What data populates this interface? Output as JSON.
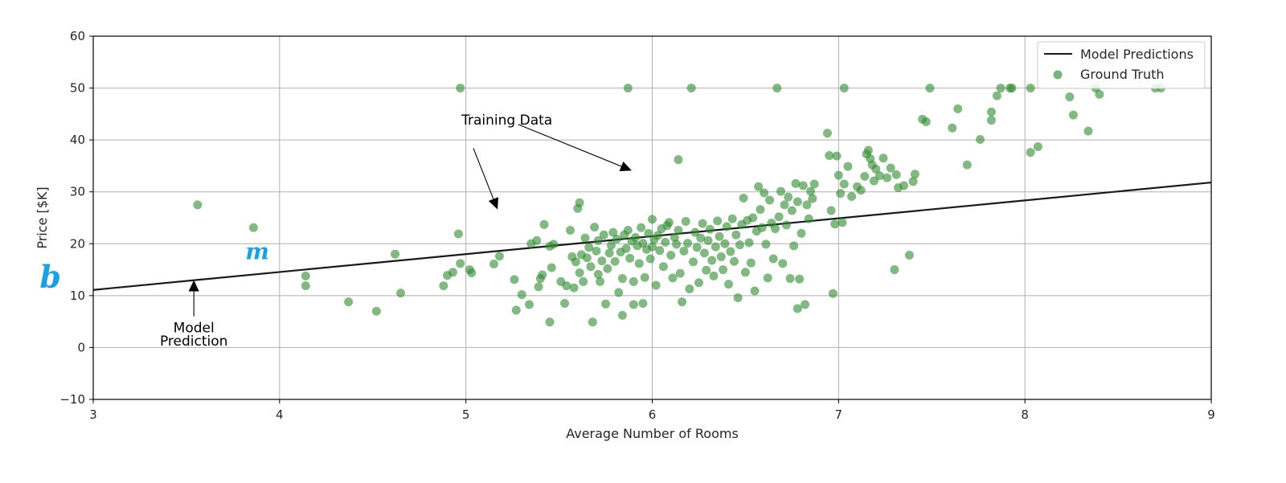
{
  "chart_data": {
    "type": "scatter",
    "xlabel": "Average Number of Rooms",
    "ylabel": "Price [$K]",
    "xlim": [
      3,
      9
    ],
    "ylim": [
      -10,
      60
    ],
    "xticks": [
      3,
      4,
      5,
      6,
      7,
      8,
      9
    ],
    "yticks": [
      -10,
      0,
      10,
      20,
      30,
      40,
      50,
      60
    ],
    "ytick_labels": [
      "−10",
      "0",
      "10",
      "20",
      "30",
      "40",
      "50",
      "60"
    ],
    "grid": true,
    "legend_position": "top-right",
    "series": [
      {
        "name": "Model Predictions",
        "kind": "line",
        "color": "#1a1a1a",
        "x": [
          3,
          9
        ],
        "y": [
          11.1,
          31.8
        ]
      },
      {
        "name": "Ground Truth",
        "kind": "scatter",
        "color": "#2e8b2e",
        "points": [
          [
            3.56,
            27.5
          ],
          [
            3.86,
            23.1
          ],
          [
            4.14,
            13.8
          ],
          [
            4.14,
            11.9
          ],
          [
            4.37,
            8.8
          ],
          [
            4.52,
            7.0
          ],
          [
            4.62,
            18.0
          ],
          [
            4.65,
            10.5
          ],
          [
            4.88,
            11.9
          ],
          [
            4.9,
            13.9
          ],
          [
            4.93,
            14.5
          ],
          [
            4.96,
            21.9
          ],
          [
            4.97,
            16.2
          ],
          [
            4.97,
            50.0
          ],
          [
            5.02,
            15.0
          ],
          [
            5.03,
            14.4
          ],
          [
            5.15,
            16.1
          ],
          [
            5.18,
            17.6
          ],
          [
            5.26,
            13.1
          ],
          [
            5.27,
            7.2
          ],
          [
            5.3,
            10.2
          ],
          [
            5.34,
            8.3
          ],
          [
            5.35,
            20.0
          ],
          [
            5.38,
            20.6
          ],
          [
            5.39,
            11.7
          ],
          [
            5.4,
            13.3
          ],
          [
            5.41,
            14.0
          ],
          [
            5.42,
            23.7
          ],
          [
            5.45,
            19.5
          ],
          [
            5.45,
            4.9
          ],
          [
            5.46,
            15.4
          ],
          [
            5.47,
            19.9
          ],
          [
            5.51,
            12.7
          ],
          [
            5.53,
            8.5
          ],
          [
            5.54,
            11.9
          ],
          [
            5.56,
            22.6
          ],
          [
            5.57,
            17.5
          ],
          [
            5.58,
            11.5
          ],
          [
            5.59,
            16.5
          ],
          [
            5.6,
            26.8
          ],
          [
            5.61,
            27.9
          ],
          [
            5.61,
            14.4
          ],
          [
            5.62,
            17.9
          ],
          [
            5.63,
            12.7
          ],
          [
            5.64,
            21.1
          ],
          [
            5.65,
            17.3
          ],
          [
            5.66,
            19.3
          ],
          [
            5.67,
            15.6
          ],
          [
            5.68,
            4.9
          ],
          [
            5.69,
            23.2
          ],
          [
            5.7,
            18.6
          ],
          [
            5.71,
            14.1
          ],
          [
            5.71,
            20.6
          ],
          [
            5.72,
            12.7
          ],
          [
            5.73,
            16.7
          ],
          [
            5.74,
            21.7
          ],
          [
            5.75,
            8.4
          ],
          [
            5.76,
            15.2
          ],
          [
            5.77,
            18.2
          ],
          [
            5.78,
            19.7
          ],
          [
            5.79,
            22.2
          ],
          [
            5.8,
            16.6
          ],
          [
            5.81,
            20.9
          ],
          [
            5.82,
            10.6
          ],
          [
            5.83,
            18.4
          ],
          [
            5.84,
            13.3
          ],
          [
            5.84,
            6.2
          ],
          [
            5.85,
            21.7
          ],
          [
            5.86,
            19.1
          ],
          [
            5.87,
            22.6
          ],
          [
            5.87,
            50.0
          ],
          [
            5.88,
            17.2
          ],
          [
            5.89,
            20.5
          ],
          [
            5.9,
            8.3
          ],
          [
            5.9,
            12.7
          ],
          [
            5.91,
            21.2
          ],
          [
            5.92,
            19.6
          ],
          [
            5.93,
            16.2
          ],
          [
            5.94,
            23.1
          ],
          [
            5.95,
            8.5
          ],
          [
            5.95,
            20.1
          ],
          [
            5.96,
            13.5
          ],
          [
            5.97,
            18.9
          ],
          [
            5.98,
            22.0
          ],
          [
            5.99,
            17.1
          ],
          [
            6.0,
            24.7
          ],
          [
            6.0,
            19.4
          ],
          [
            6.01,
            20.8
          ],
          [
            6.02,
            12.0
          ],
          [
            6.03,
            21.6
          ],
          [
            6.04,
            18.7
          ],
          [
            6.05,
            22.9
          ],
          [
            6.06,
            15.6
          ],
          [
            6.07,
            20.3
          ],
          [
            6.08,
            23.5
          ],
          [
            6.09,
            24.1
          ],
          [
            6.1,
            17.8
          ],
          [
            6.11,
            13.4
          ],
          [
            6.12,
            21.2
          ],
          [
            6.13,
            19.9
          ],
          [
            6.14,
            36.2
          ],
          [
            6.14,
            22.6
          ],
          [
            6.15,
            14.3
          ],
          [
            6.16,
            8.8
          ],
          [
            6.17,
            18.6
          ],
          [
            6.18,
            24.3
          ],
          [
            6.19,
            20.1
          ],
          [
            6.2,
            11.3
          ],
          [
            6.21,
            50.0
          ],
          [
            6.22,
            16.5
          ],
          [
            6.23,
            22.2
          ],
          [
            6.24,
            19.3
          ],
          [
            6.25,
            12.5
          ],
          [
            6.26,
            21.1
          ],
          [
            6.27,
            23.9
          ],
          [
            6.28,
            18.2
          ],
          [
            6.29,
            14.9
          ],
          [
            6.3,
            20.6
          ],
          [
            6.31,
            22.8
          ],
          [
            6.32,
            16.8
          ],
          [
            6.33,
            13.8
          ],
          [
            6.34,
            19.4
          ],
          [
            6.35,
            24.4
          ],
          [
            6.36,
            21.4
          ],
          [
            6.37,
            17.5
          ],
          [
            6.38,
            15.0
          ],
          [
            6.39,
            20.0
          ],
          [
            6.4,
            23.3
          ],
          [
            6.41,
            12.2
          ],
          [
            6.42,
            18.5
          ],
          [
            6.43,
            24.8
          ],
          [
            6.44,
            16.6
          ],
          [
            6.45,
            21.7
          ],
          [
            6.46,
            9.6
          ],
          [
            6.47,
            19.8
          ],
          [
            6.48,
            23.7
          ],
          [
            6.49,
            28.8
          ],
          [
            6.5,
            14.5
          ],
          [
            6.51,
            24.5
          ],
          [
            6.52,
            20.2
          ],
          [
            6.53,
            16.3
          ],
          [
            6.54,
            25.0
          ],
          [
            6.55,
            10.9
          ],
          [
            6.56,
            22.4
          ],
          [
            6.57,
            31.0
          ],
          [
            6.58,
            26.6
          ],
          [
            6.59,
            23.1
          ],
          [
            6.6,
            29.8
          ],
          [
            6.61,
            19.9
          ],
          [
            6.62,
            13.4
          ],
          [
            6.63,
            28.4
          ],
          [
            6.64,
            24.0
          ],
          [
            6.65,
            17.1
          ],
          [
            6.66,
            22.9
          ],
          [
            6.67,
            50.0
          ],
          [
            6.68,
            25.2
          ],
          [
            6.69,
            30.1
          ],
          [
            6.7,
            16.2
          ],
          [
            6.71,
            27.5
          ],
          [
            6.72,
            23.6
          ],
          [
            6.73,
            29.0
          ],
          [
            6.74,
            13.3
          ],
          [
            6.75,
            26.4
          ],
          [
            6.76,
            19.6
          ],
          [
            6.77,
            31.6
          ],
          [
            6.78,
            7.5
          ],
          [
            6.78,
            28.1
          ],
          [
            6.79,
            13.2
          ],
          [
            6.8,
            22.0
          ],
          [
            6.81,
            31.2
          ],
          [
            6.82,
            8.3
          ],
          [
            6.83,
            27.5
          ],
          [
            6.84,
            24.8
          ],
          [
            6.85,
            30.1
          ],
          [
            6.86,
            28.7
          ],
          [
            6.87,
            31.5
          ],
          [
            6.94,
            41.3
          ],
          [
            6.95,
            37.0
          ],
          [
            6.96,
            26.4
          ],
          [
            6.97,
            10.4
          ],
          [
            6.98,
            23.8
          ],
          [
            6.99,
            36.9
          ],
          [
            7.0,
            33.2
          ],
          [
            7.01,
            29.7
          ],
          [
            7.02,
            24.1
          ],
          [
            7.03,
            31.5
          ],
          [
            7.03,
            50.0
          ],
          [
            7.05,
            34.9
          ],
          [
            7.07,
            29.1
          ],
          [
            7.1,
            31.0
          ],
          [
            7.12,
            30.3
          ],
          [
            7.14,
            33.0
          ],
          [
            7.15,
            37.3
          ],
          [
            7.16,
            38.0
          ],
          [
            7.17,
            36.4
          ],
          [
            7.18,
            35.2
          ],
          [
            7.19,
            32.1
          ],
          [
            7.2,
            34.4
          ],
          [
            7.22,
            33.1
          ],
          [
            7.24,
            36.5
          ],
          [
            7.26,
            32.7
          ],
          [
            7.28,
            34.6
          ],
          [
            7.3,
            15.0
          ],
          [
            7.31,
            33.3
          ],
          [
            7.32,
            30.8
          ],
          [
            7.35,
            31.2
          ],
          [
            7.38,
            17.8
          ],
          [
            7.4,
            32.0
          ],
          [
            7.41,
            33.4
          ],
          [
            7.45,
            44.0
          ],
          [
            7.47,
            43.5
          ],
          [
            7.49,
            50.0
          ],
          [
            7.61,
            42.3
          ],
          [
            7.64,
            46.0
          ],
          [
            7.69,
            35.2
          ],
          [
            7.76,
            40.1
          ],
          [
            7.82,
            45.4
          ],
          [
            7.82,
            43.8
          ],
          [
            7.85,
            48.5
          ],
          [
            7.87,
            50.0
          ],
          [
            7.92,
            50.0
          ],
          [
            7.93,
            50.0
          ],
          [
            8.03,
            50.0
          ],
          [
            8.03,
            37.6
          ],
          [
            8.07,
            38.7
          ],
          [
            8.24,
            48.3
          ],
          [
            8.26,
            44.8
          ],
          [
            8.34,
            41.7
          ],
          [
            8.38,
            50.0
          ],
          [
            8.4,
            48.8
          ],
          [
            8.7,
            50.0
          ],
          [
            8.73,
            50.0
          ]
        ]
      }
    ],
    "annotations": [
      {
        "text": "Training Data",
        "x": 5.22,
        "y": 43.0
      },
      {
        "text": "Model",
        "x": 3.54,
        "y": 2.9
      },
      {
        "text": "Prediction",
        "x": 3.54,
        "y": 0.4
      },
      {
        "text": "b",
        "x": 2.77,
        "y": 11.6,
        "color": "#1ba1e2"
      },
      {
        "text": "m",
        "x": 3.88,
        "y": 17.0,
        "color": "#1ba1e2"
      }
    ],
    "arrows": [
      {
        "from": [
          5.28,
          43.0
        ],
        "to": [
          5.89,
          34.1
        ]
      },
      {
        "from": [
          5.04,
          38.4
        ],
        "to": [
          5.17,
          26.6
        ]
      },
      {
        "from": [
          3.54,
          6.0
        ],
        "to": [
          3.54,
          13.0
        ]
      }
    ]
  }
}
